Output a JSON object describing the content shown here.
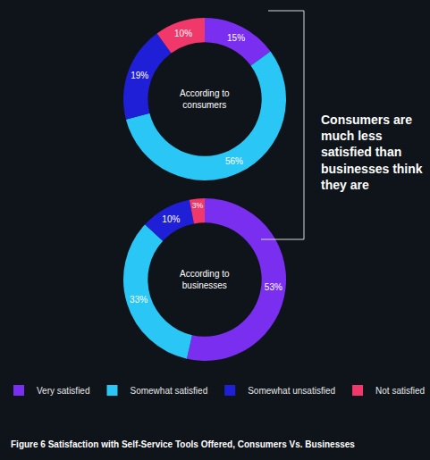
{
  "chart_data": {
    "type": "pie",
    "title": "Figure 6 Satisfaction with Self-Service Tools Offered, Consumers Vs. Businesses",
    "annotations": [
      "Consumers are much less satisfied than businesses think they are"
    ],
    "categories": [
      "Very satisfied",
      "Somewhat satisfied",
      "Somewhat unsatisfied",
      "Not satisfied"
    ],
    "colors": [
      "#7a2ff0",
      "#2ac6f5",
      "#1f1fd8",
      "#f0386b"
    ],
    "series": [
      {
        "name": "According to consumers",
        "values": [
          15,
          56,
          19,
          10
        ],
        "value_labels": [
          "15%",
          "56%",
          "19%",
          "10%"
        ]
      },
      {
        "name": "According to businesses",
        "values": [
          53,
          33,
          10,
          3
        ],
        "value_labels": [
          "53%",
          "33%",
          "10%",
          "3%"
        ]
      }
    ],
    "data_labels": true,
    "legend": "bottom"
  }
}
